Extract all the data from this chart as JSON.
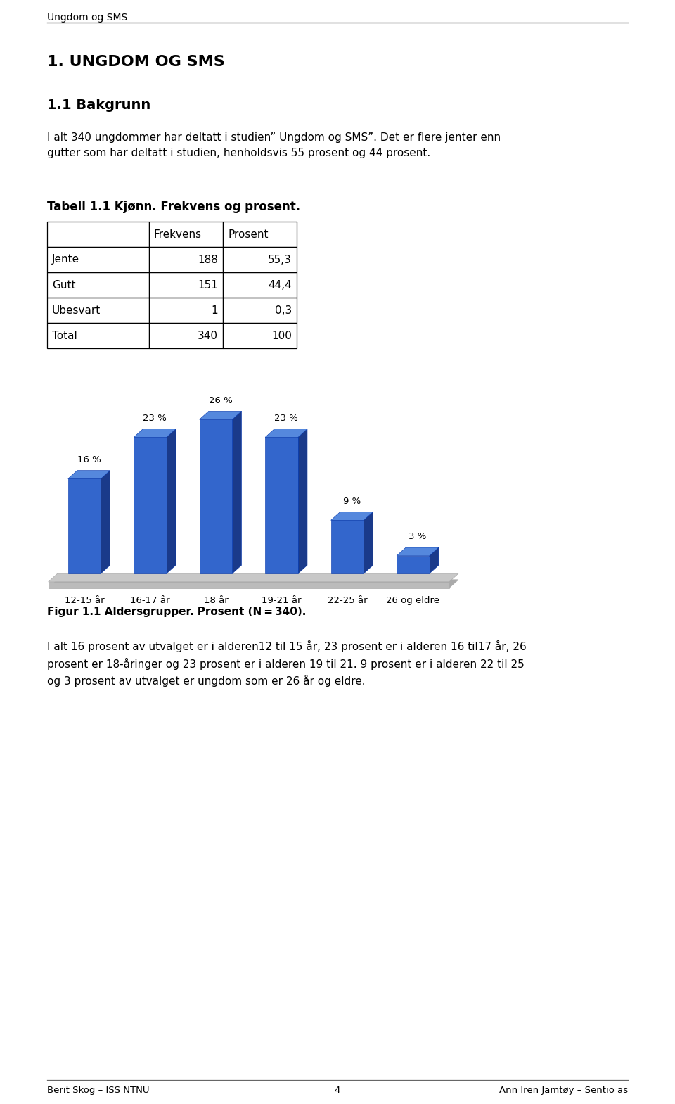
{
  "page_title": "Ungdom og SMS",
  "section_heading": "1. UNGDOM OG SMS",
  "subsection_heading": "1.1 Bakgrunn",
  "intro_text": "I alt 340 ungdommer har deltatt i studien” Ungdom og SMS”. Det er flere jenter enn\ngutter som har deltatt i studien, henholdsvis 55 prosent og 44 prosent.",
  "table_heading": "Tabell 1.1 Kjønn. Frekvens og prosent.",
  "table_headers": [
    "",
    "Frekvens",
    "Prosent"
  ],
  "table_rows": [
    [
      "Jente",
      "188",
      "55,3"
    ],
    [
      "Gutt",
      "151",
      "44,4"
    ],
    [
      "Ubesvart",
      "1",
      "0,3"
    ],
    [
      "Total",
      "340",
      "100"
    ]
  ],
  "bar_categories": [
    "12-15 år",
    "16-17 år",
    "18 år",
    "19-21 år",
    "22-25 år",
    "26 og eldre"
  ],
  "bar_values": [
    16,
    23,
    26,
    23,
    9,
    3
  ],
  "bar_labels": [
    "16 %",
    "23 %",
    "26 %",
    "23 %",
    "9 %",
    "3 %"
  ],
  "bar_color_face": "#3366CC",
  "bar_color_dark": "#1A3A8A",
  "bar_color_top": "#5588DD",
  "floor_color": "#C8C8C8",
  "floor_edge_color": "#AAAAAA",
  "figure_caption": "Figur 1.1 Aldersgrupper. Prosent (N = 340).",
  "body_text": "I alt 16 prosent av utvalget er i alderen12 til 15 år, 23 prosent er i alderen 16 til17 år, 26\nprosent er 18-åringer og 23 prosent er i alderen 19 til 21. 9 prosent er i alderen 22 til 25\nog 3 prosent av utvalget er ungdom som er 26 år og eldre.",
  "footer_left": "Berit Skog – ISS NTNU",
  "footer_center": "4",
  "footer_right": "Ann Iren Jamtøy – Sentio as",
  "bg_color": "#FFFFFF",
  "text_color": "#000000"
}
